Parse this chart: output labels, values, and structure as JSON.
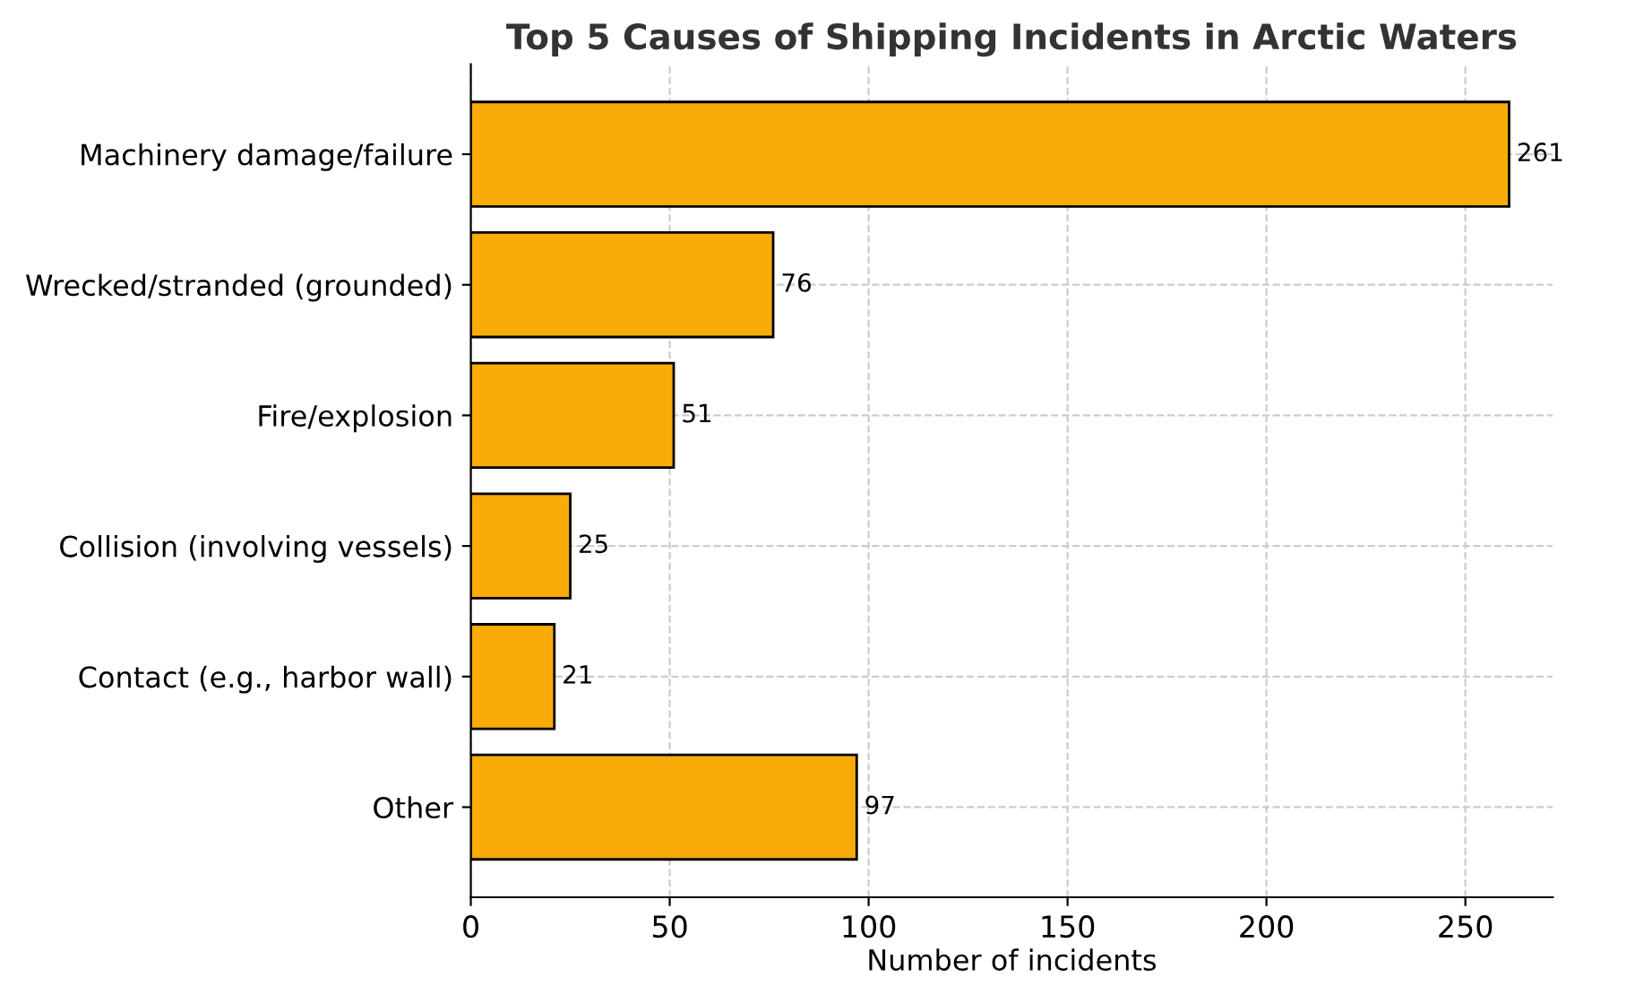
{
  "chart_data": {
    "type": "bar",
    "orientation": "horizontal",
    "title": "Top 5 Causes of Shipping Incidents in Arctic Waters",
    "xlabel": "Number of incidents",
    "categories": [
      "Machinery damage/failure",
      "Wrecked/stranded (grounded)",
      "Fire/explosion",
      "Collision (involving vessels)",
      "Contact (e.g., harbor wall)",
      "Other"
    ],
    "values": [
      261,
      76,
      51,
      25,
      21,
      97
    ],
    "color": "#f9ab0a",
    "xlim": [
      0,
      272
    ],
    "xticks": [
      0,
      50,
      100,
      150,
      200,
      250
    ],
    "grid": true,
    "data_labels": true
  }
}
